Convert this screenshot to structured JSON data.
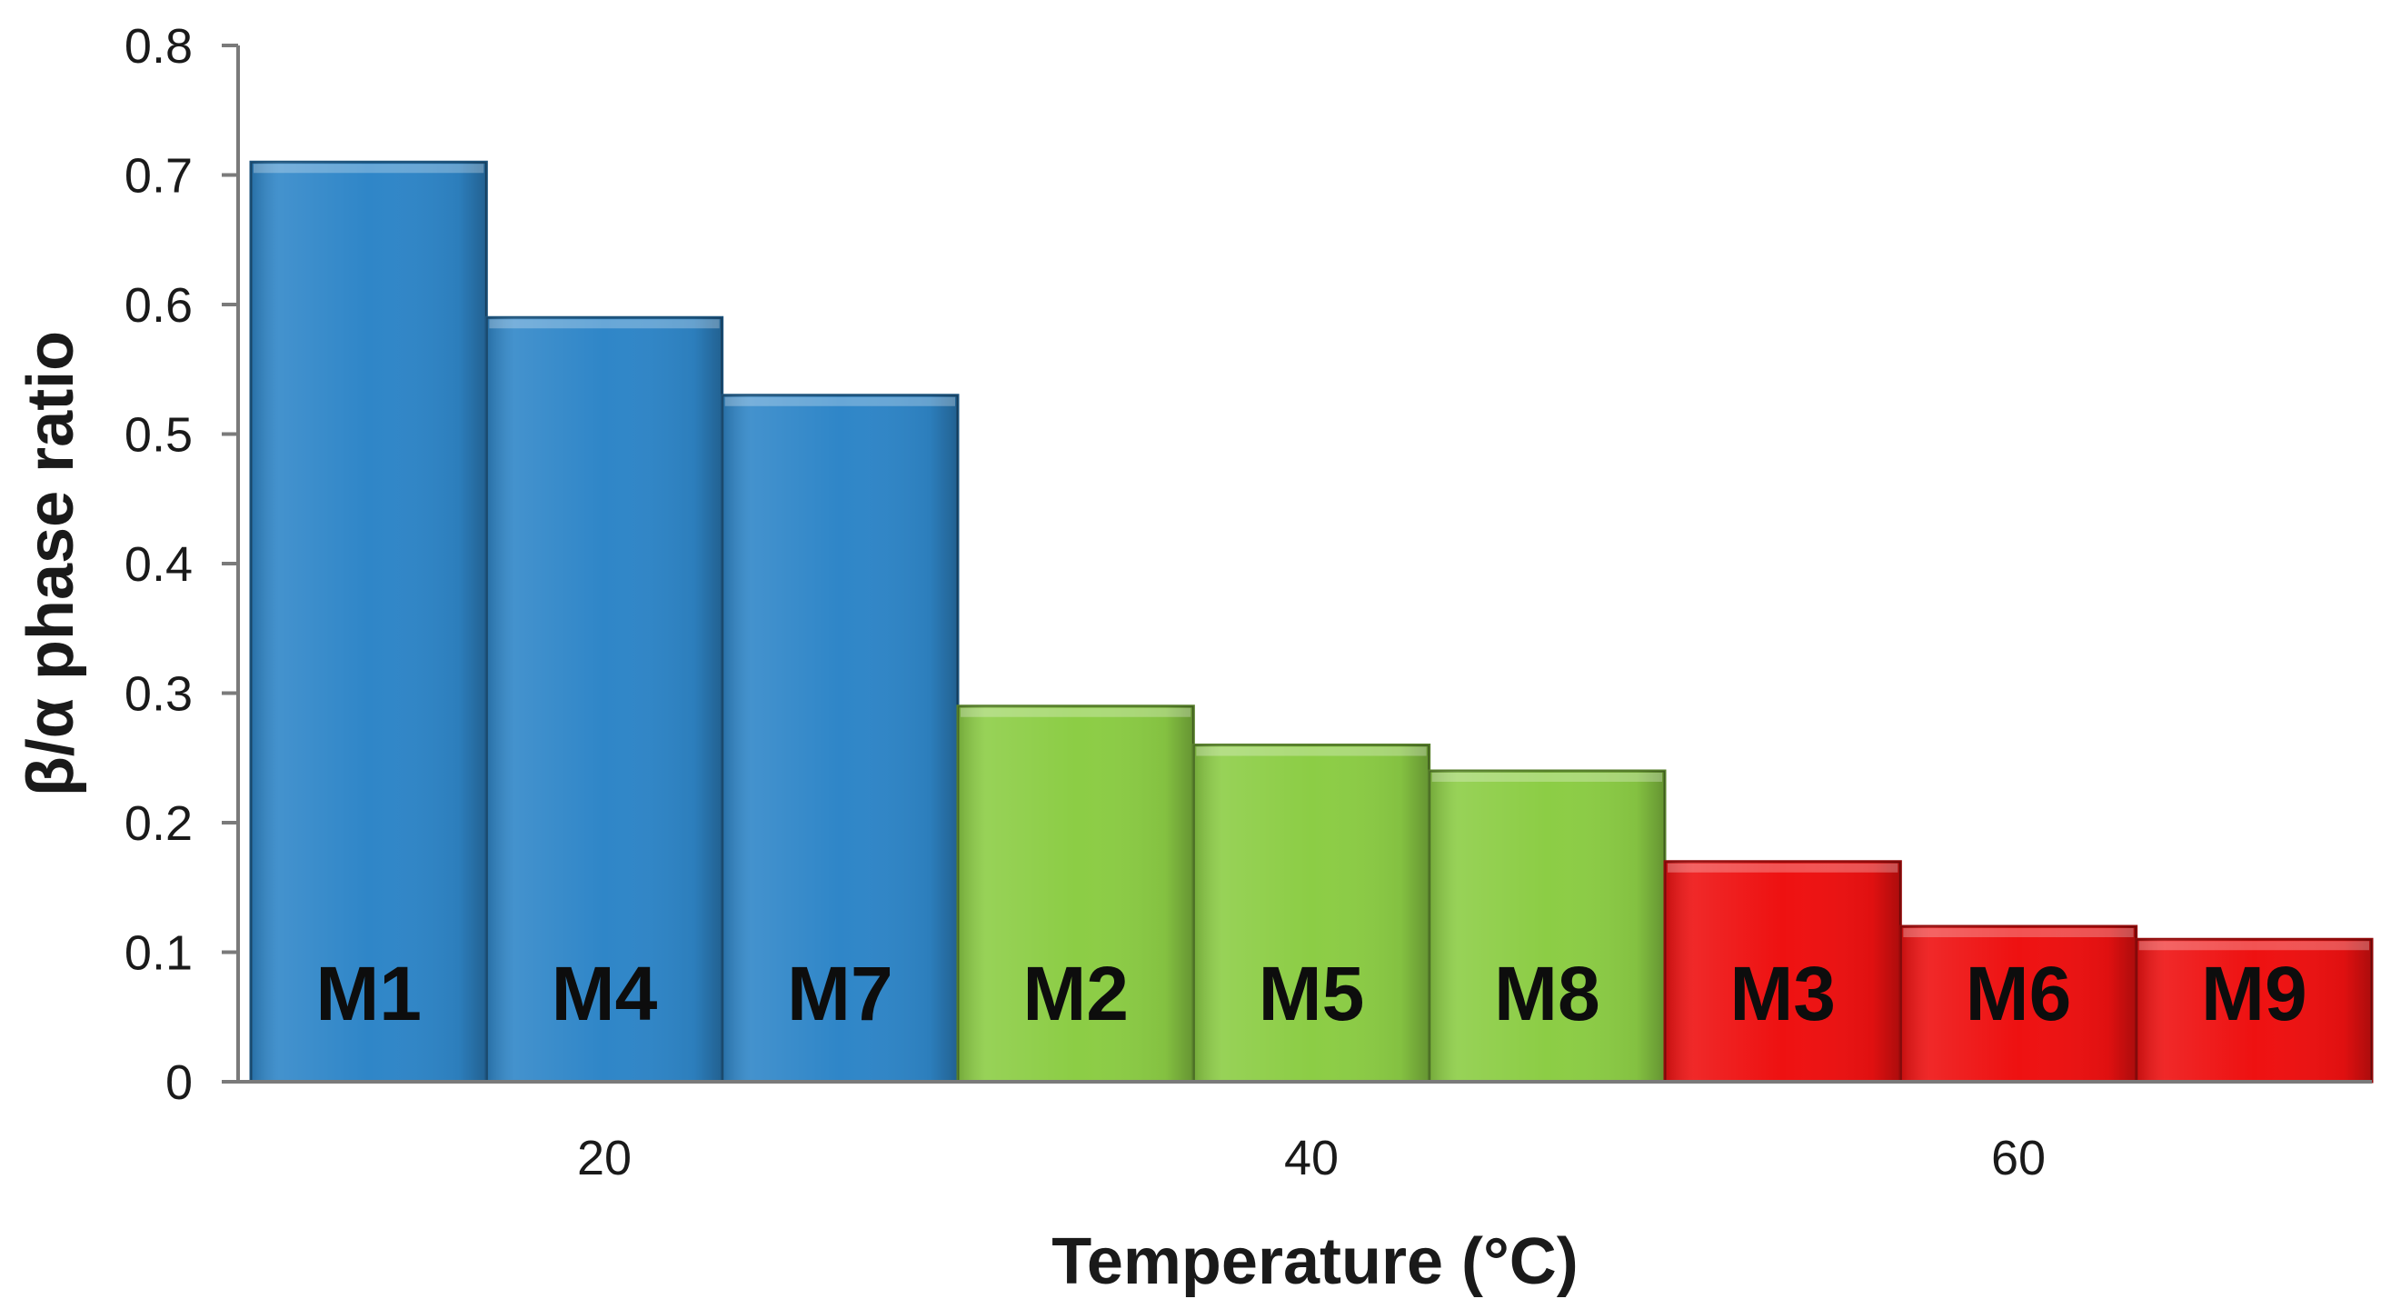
{
  "chart_data": {
    "type": "bar",
    "title": "",
    "xlabel": "Temperature (°C)",
    "ylabel": "β/α phase ratio",
    "ylim": [
      0,
      0.8
    ],
    "yticks": [
      "0",
      "0.1",
      "0.2",
      "0.3",
      "0.4",
      "0.5",
      "0.6",
      "0.7",
      "0.8"
    ],
    "ytick_values": [
      0,
      0.1,
      0.2,
      0.3,
      0.4,
      0.5,
      0.6,
      0.7,
      0.8
    ],
    "groups": [
      {
        "x_label": "20",
        "color": "#2f86c8"
      },
      {
        "x_label": "40",
        "color": "#8ccd45"
      },
      {
        "x_label": "60",
        "color": "#ee1111"
      }
    ],
    "bars": [
      {
        "label": "M1",
        "value": 0.71,
        "group": 0
      },
      {
        "label": "M4",
        "value": 0.59,
        "group": 0
      },
      {
        "label": "M7",
        "value": 0.53,
        "group": 0
      },
      {
        "label": "M2",
        "value": 0.29,
        "group": 1
      },
      {
        "label": "M5",
        "value": 0.26,
        "group": 1
      },
      {
        "label": "M8",
        "value": 0.24,
        "group": 1
      },
      {
        "label": "M3",
        "value": 0.17,
        "group": 2
      },
      {
        "label": "M6",
        "value": 0.12,
        "group": 2
      },
      {
        "label": "M9",
        "value": 0.11,
        "group": 2
      }
    ],
    "grid": false,
    "legend": "none"
  }
}
